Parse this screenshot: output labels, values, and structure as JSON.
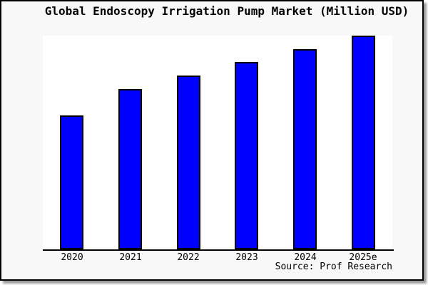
{
  "chart_data": {
    "type": "bar",
    "title": "Global Endoscopy Irrigation Pump Market (Million USD)",
    "categories": [
      "2020",
      "2021",
      "2022",
      "2023",
      "2024",
      "2025e"
    ],
    "values": [
      62.7,
      75.0,
      81.3,
      87.7,
      93.7,
      100.0
    ],
    "value_axis": "unlabeled (no y-axis ticks shown; values are % of tallest bar)",
    "xlabel": "",
    "ylabel": "",
    "grid": "off",
    "legend": "none",
    "bar_color": "#0000ff",
    "bar_border_color": "#000000",
    "source": "Source: Prof Research"
  }
}
